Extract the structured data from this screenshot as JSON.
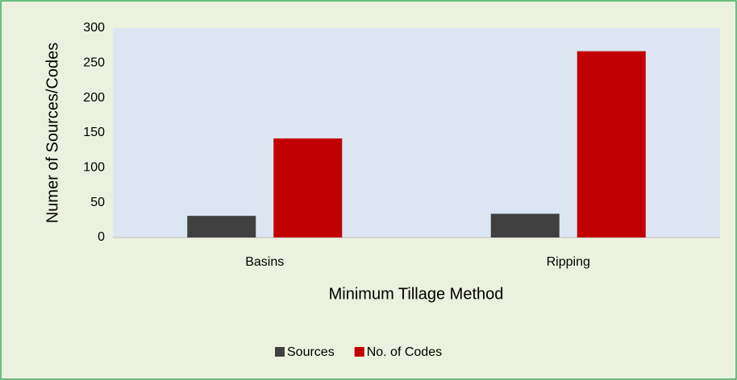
{
  "chart_data": {
    "type": "bar",
    "categories": [
      "Basins",
      "Ripping"
    ],
    "series": [
      {
        "name": "Sources",
        "color": "#404040",
        "values": [
          31,
          34
        ]
      },
      {
        "name": "No. of Codes",
        "color": "#c00000",
        "values": [
          142,
          267
        ]
      }
    ],
    "xlabel": "Minimum Tillage Method",
    "ylabel": "Numer of Sources/Codes",
    "ylim": [
      0,
      300
    ],
    "yticks": [
      0,
      50,
      100,
      150,
      200,
      250,
      300
    ],
    "grid": false,
    "legend": "bottom"
  }
}
